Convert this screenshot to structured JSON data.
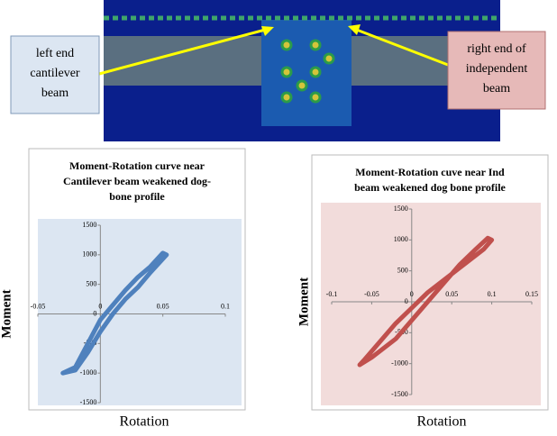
{
  "callouts": {
    "left": [
      "left end",
      "cantilever",
      "beam"
    ],
    "right": [
      "right end of",
      "independent",
      "beam"
    ]
  },
  "chart_data": [
    {
      "type": "line",
      "title": [
        "Moment-Rotation curve near",
        "Cantilever  beam weakened dog-",
        "bone profile"
      ],
      "x_label": "Rotation",
      "y_label": "Moment",
      "xlim": [
        -0.05,
        0.1
      ],
      "xticks": [
        -0.05,
        0,
        0.05,
        0.1
      ],
      "ylim": [
        -1500,
        1500
      ],
      "yticks": [
        -1500,
        -1000,
        -500,
        0,
        500,
        1000,
        1500
      ],
      "background": "#dce6f2",
      "series": [
        {
          "color": "#4f81bd",
          "x": [
            -0.03,
            -0.02,
            -0.01,
            0,
            0.01,
            0.02,
            0.03,
            0.04,
            0.05,
            0.053,
            0.04,
            0.03,
            0.02,
            0.01,
            0,
            -0.01,
            -0.02,
            -0.03
          ],
          "values": [
            -1000,
            -900,
            -500,
            -100,
            150,
            400,
            620,
            800,
            1030,
            1000,
            700,
            450,
            250,
            0,
            -300,
            -650,
            -950,
            -1000
          ]
        }
      ]
    },
    {
      "type": "line",
      "title": [
        "Moment-Rotation cuve near Ind",
        "beam weakened dog bone profile"
      ],
      "x_label": "Rotation",
      "y_label": "Moment",
      "xlim": [
        -0.1,
        0.15
      ],
      "xticks": [
        -0.1,
        -0.05,
        0,
        0.05,
        0.1,
        0.15
      ],
      "ylim": [
        -1500,
        1500
      ],
      "yticks": [
        -1500,
        -1000,
        -500,
        0,
        500,
        1000,
        1500
      ],
      "background": "#f2dcdb",
      "series": [
        {
          "color": "#c0504d",
          "x": [
            -0.065,
            -0.05,
            -0.02,
            0,
            0.02,
            0.04,
            0.06,
            0.08,
            0.095,
            0.1,
            0.09,
            0.07,
            0.05,
            0.02,
            0,
            -0.02,
            -0.04,
            -0.06,
            -0.065
          ],
          "values": [
            -1020,
            -900,
            -600,
            -300,
            0,
            300,
            600,
            850,
            1030,
            1000,
            850,
            650,
            450,
            150,
            -100,
            -350,
            -650,
            -950,
            -1020
          ]
        }
      ]
    }
  ]
}
